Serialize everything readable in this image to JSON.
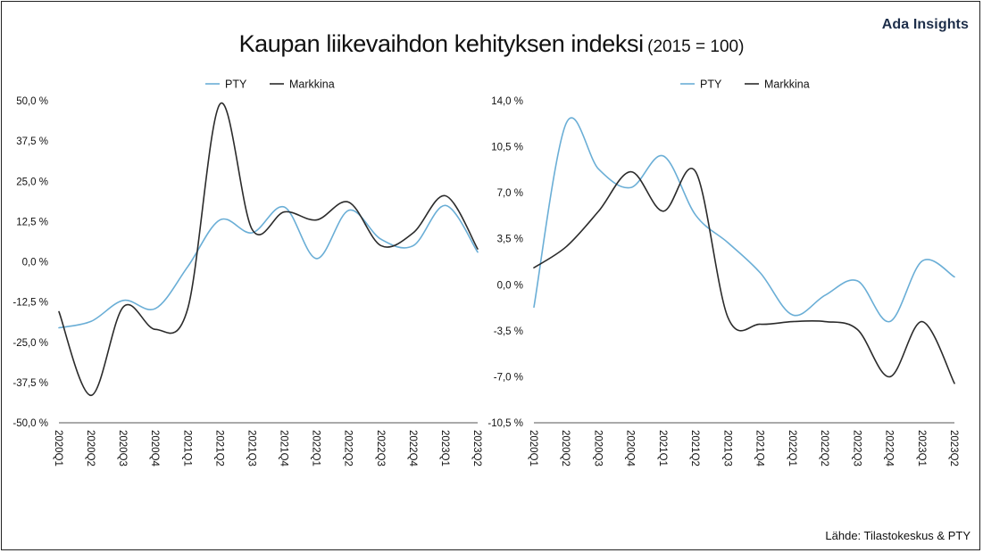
{
  "header": {
    "brand": "Ada Insights",
    "title": "Kaupan liikevaihdon kehityksen indeksi",
    "subtitle": "(2015 = 100)"
  },
  "footer": {
    "source": "Lähde: Tilastokeskus & PTY"
  },
  "colors": {
    "pty": "#6aaed6",
    "markkina": "#2b2b2b",
    "axis": "#555555"
  },
  "chart_data": [
    {
      "type": "line",
      "title": "",
      "xlabel": "",
      "ylabel": "",
      "categories": [
        "2020Q1",
        "2020Q2",
        "2020Q3",
        "2020Q4",
        "2021Q1",
        "2021Q2",
        "2021Q3",
        "2021Q4",
        "2022Q1",
        "2022Q2",
        "2022Q3",
        "2022Q4",
        "2023Q1",
        "2023Q2"
      ],
      "ylim": [
        -50,
        50
      ],
      "yticks": [
        50,
        37.5,
        25,
        12.5,
        0,
        -12.5,
        -25,
        -37.5,
        -50
      ],
      "ytick_labels": [
        "50,0 %",
        "37,5 %",
        "25,0 %",
        "12,5 %",
        "0,0 %",
        "-12,5 %",
        "-25,0 %",
        "-37,5 %",
        "-50,0 %"
      ],
      "legend": "top-center",
      "grid": false,
      "series": [
        {
          "name": "PTY",
          "values": [
            -20.5,
            -18.5,
            -12,
            -14.5,
            -1.5,
            13,
            9,
            17,
            1,
            16,
            7,
            5,
            17.5,
            3
          ]
        },
        {
          "name": "Markkina",
          "values": [
            -15.5,
            -41.5,
            -14,
            -21,
            -14.5,
            49,
            10,
            15.5,
            13,
            18.5,
            5,
            9,
            20.5,
            4
          ]
        }
      ]
    },
    {
      "type": "line",
      "title": "",
      "xlabel": "",
      "ylabel": "",
      "categories": [
        "2020Q1",
        "2020Q2",
        "2020Q3",
        "2020Q4",
        "2021Q1",
        "2021Q2",
        "2021Q3",
        "2021Q4",
        "2022Q1",
        "2022Q2",
        "2022Q3",
        "2022Q4",
        "2023Q1",
        "2023Q2"
      ],
      "ylim": [
        -10.5,
        14
      ],
      "yticks": [
        14,
        10.5,
        7,
        3.5,
        0,
        -3.5,
        -7,
        -10.5
      ],
      "ytick_labels": [
        "14,0 %",
        "10,5 %",
        "7,0 %",
        "3,5 %",
        "0,0 %",
        "-3,5 %",
        "-7,0 %",
        "-10,5 %"
      ],
      "legend": "top-center",
      "grid": false,
      "series": [
        {
          "name": "PTY",
          "values": [
            -1.7,
            12.3,
            8.8,
            7.4,
            9.8,
            5.3,
            3.2,
            0.9,
            -2.3,
            -0.8,
            0.3,
            -2.8,
            1.8,
            0.6
          ]
        },
        {
          "name": "Markkina",
          "values": [
            1.3,
            2.9,
            5.6,
            8.6,
            5.6,
            8.6,
            -2.5,
            -3.0,
            -2.8,
            -2.8,
            -3.4,
            -7.0,
            -2.8,
            -7.5
          ]
        }
      ]
    }
  ]
}
